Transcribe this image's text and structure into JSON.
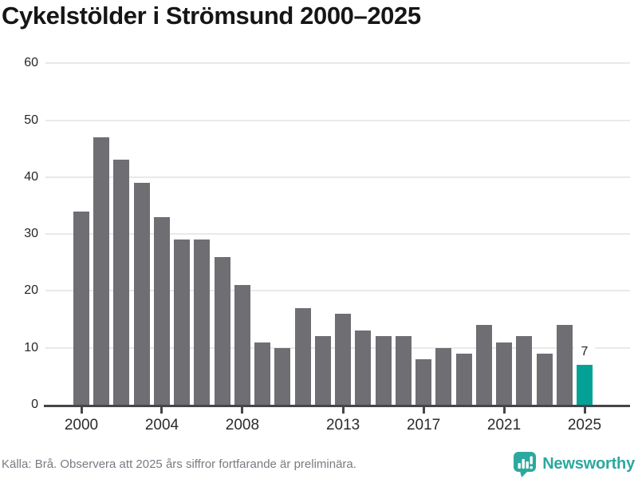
{
  "chart": {
    "title": "Cykelstölder i Strömsund 2000–2025"
  },
  "chart_data": {
    "type": "bar",
    "title": "Cykelstölder i Strömsund 2000–2025",
    "categories": [
      2000,
      2001,
      2002,
      2003,
      2004,
      2005,
      2006,
      2007,
      2008,
      2009,
      2010,
      2011,
      2012,
      2013,
      2014,
      2015,
      2016,
      2017,
      2018,
      2019,
      2020,
      2021,
      2022,
      2023,
      2024,
      2025
    ],
    "values": [
      34,
      47,
      43,
      39,
      33,
      29,
      29,
      26,
      21,
      11,
      10,
      17,
      12,
      16,
      13,
      12,
      12,
      8,
      10,
      9,
      14,
      11,
      12,
      9,
      14,
      7
    ],
    "xlabel": "",
    "ylabel": "",
    "ylim": [
      0,
      60
    ],
    "yticks": [
      0,
      10,
      20,
      30,
      40,
      50,
      60
    ],
    "xtick_labels": [
      "2000",
      "2004",
      "2008",
      "2013",
      "2017",
      "2021",
      "2025"
    ],
    "xtick_indices": [
      0,
      4,
      8,
      13,
      17,
      21,
      25
    ],
    "grid": "horizontal",
    "legend": "none",
    "bar_color": "#6e6e73",
    "highlight_index": 25,
    "highlight_color": "#04a296",
    "highlight_label": "7"
  },
  "footer": {
    "source": "Källa: Brå. Observera att 2025 års siffror fortfarande är preliminära.",
    "brand": "Newsworthy"
  },
  "colors": {
    "axis": "#45454a",
    "gridline": "#e9e9e9",
    "title_text": "#161616",
    "source_text": "#7a7a83",
    "brand_teal": "#2ca89e"
  },
  "icons": {
    "brand_logo": "newsworthy-pin-barchart-icon"
  }
}
